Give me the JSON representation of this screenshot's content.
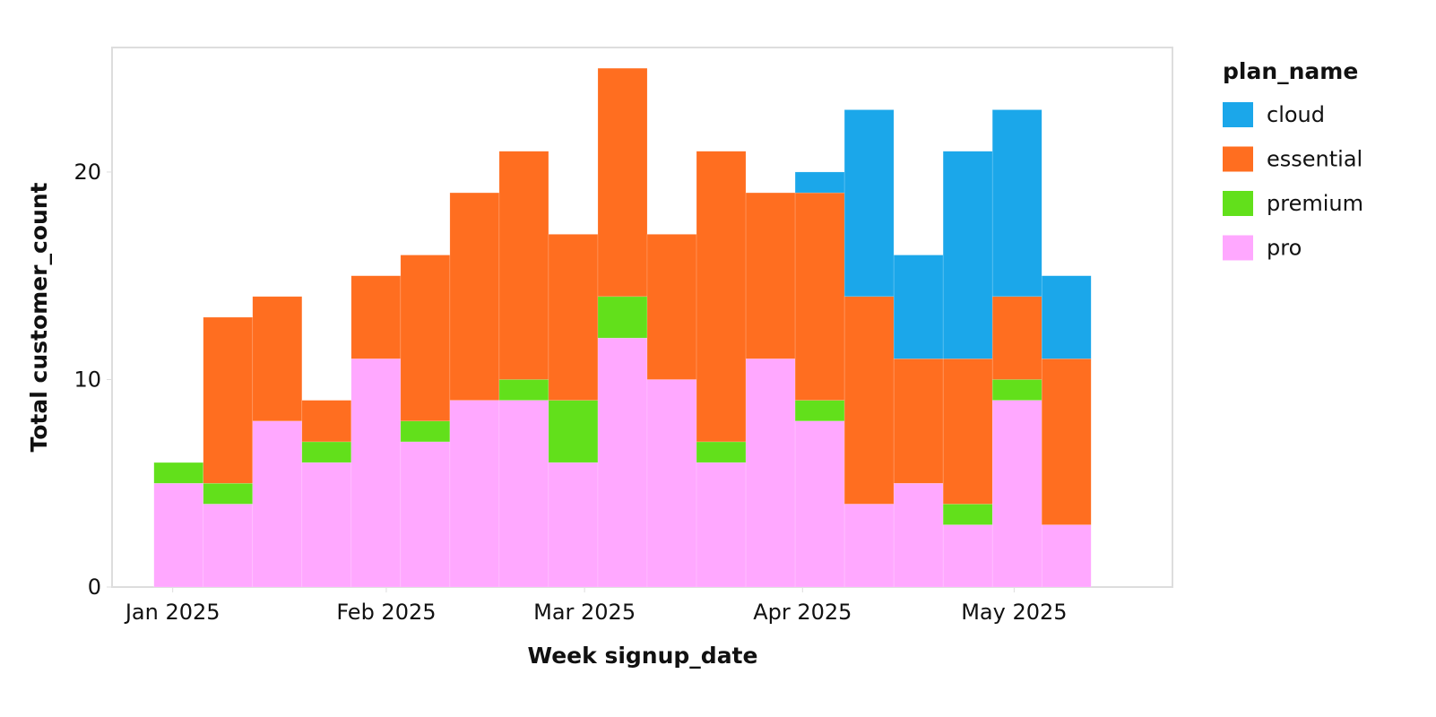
{
  "chart_data": {
    "type": "stacked_bar",
    "x_label": "Week signup_date",
    "y_label": "Total customer_count",
    "legend_title": "plan_name",
    "legend_position": "right",
    "categories": [
      null,
      null,
      null,
      null,
      null,
      null,
      null,
      null,
      null,
      null,
      null,
      null,
      null,
      null,
      null,
      null,
      null,
      null,
      null
    ],
    "xlim": [
      -0.85,
      20.65
    ],
    "xticks": [
      {
        "value": 0.38,
        "label": "Jan 2025"
      },
      {
        "value": 4.71,
        "label": "Feb 2025"
      },
      {
        "value": 8.73,
        "label": "Mar 2025"
      },
      {
        "value": 13.15,
        "label": "Apr 2025"
      },
      {
        "value": 17.44,
        "label": "May 2025"
      }
    ],
    "ylim": [
      0,
      26
    ],
    "yticks": [
      0,
      10,
      20
    ],
    "series": [
      {
        "name": "cloud",
        "color": "#1ba7ea",
        "values": [
          0,
          0,
          0,
          0,
          0,
          0,
          0,
          0,
          0,
          0,
          0,
          0,
          0,
          1,
          9,
          5,
          10,
          9,
          4
        ]
      },
      {
        "name": "essential",
        "color": "#ff6e20",
        "values": [
          0,
          8,
          6,
          2,
          4,
          8,
          10,
          11,
          8,
          11,
          7,
          14,
          8,
          10,
          10,
          6,
          7,
          4,
          8
        ]
      },
      {
        "name": "premium",
        "color": "#62e01b",
        "values": [
          1,
          1,
          0,
          1,
          0,
          1,
          0,
          1,
          3,
          2,
          0,
          1,
          0,
          1,
          0,
          0,
          1,
          1,
          0
        ]
      },
      {
        "name": "pro",
        "color": "#ffa8ff",
        "values": [
          5,
          4,
          8,
          6,
          11,
          7,
          9,
          9,
          6,
          12,
          10,
          6,
          11,
          8,
          4,
          5,
          3,
          9,
          3
        ]
      }
    ]
  }
}
